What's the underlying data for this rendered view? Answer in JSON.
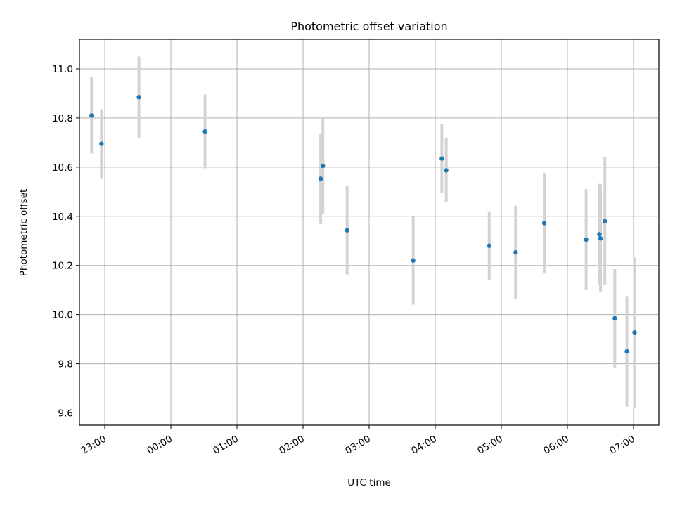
{
  "chart_data": {
    "type": "scatter",
    "title": "Photometric offset variation",
    "xlabel": "UTC time",
    "ylabel": "Photometric offset",
    "grid": true,
    "error_bar_color": "#d3d3d3",
    "point_color": "#1f77b4",
    "x_ticks": [
      "23:00",
      "00:00",
      "01:00",
      "02:00",
      "03:00",
      "04:00",
      "05:00",
      "06:00",
      "07:00"
    ],
    "y_ticks": [
      "9.6",
      "9.8",
      "10.0",
      "10.2",
      "10.4",
      "10.6",
      "10.8",
      "11.0"
    ],
    "xlim": [
      "22:37",
      "07:23"
    ],
    "ylim": [
      9.55,
      11.12
    ],
    "series": [
      {
        "points": [
          {
            "x": "22:48",
            "y": 10.81,
            "yerr": 0.155
          },
          {
            "x": "22:57",
            "y": 10.695,
            "yerr": 0.14
          },
          {
            "x": "23:31",
            "y": 10.885,
            "yerr": 0.165
          },
          {
            "x": "00:31",
            "y": 10.745,
            "yerr": 0.15
          },
          {
            "x": "02:16",
            "y": 10.553,
            "yerr": 0.185
          },
          {
            "x": "02:18",
            "y": 10.605,
            "yerr": 0.195
          },
          {
            "x": "02:40",
            "y": 10.343,
            "yerr": 0.18
          },
          {
            "x": "03:40",
            "y": 10.22,
            "yerr": 0.18
          },
          {
            "x": "04:06",
            "y": 10.635,
            "yerr": 0.14
          },
          {
            "x": "04:10",
            "y": 10.587,
            "yerr": 0.13
          },
          {
            "x": "04:49",
            "y": 10.28,
            "yerr": 0.14
          },
          {
            "x": "05:13",
            "y": 10.253,
            "yerr": 0.19
          },
          {
            "x": "05:39",
            "y": 10.372,
            "yerr": 0.205
          },
          {
            "x": "06:17",
            "y": 10.305,
            "yerr": 0.205
          },
          {
            "x": "06:29",
            "y": 10.327,
            "yerr": 0.205
          },
          {
            "x": "06:30",
            "y": 10.31,
            "yerr": 0.22
          },
          {
            "x": "06:34",
            "y": 10.38,
            "yerr": 0.26
          },
          {
            "x": "06:43",
            "y": 9.985,
            "yerr": 0.2
          },
          {
            "x": "06:54",
            "y": 9.85,
            "yerr": 0.225
          },
          {
            "x": "07:01",
            "y": 9.927,
            "yerr": 0.305
          }
        ]
      }
    ]
  }
}
